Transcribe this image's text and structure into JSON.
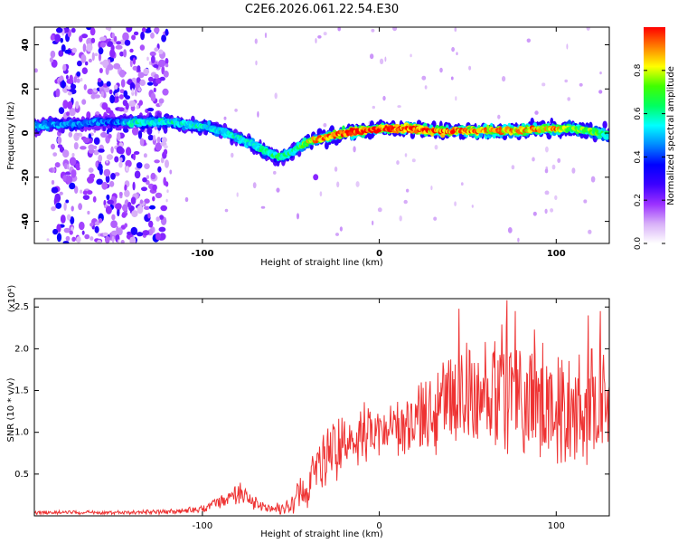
{
  "title": "C2E6.2026.061.22.54.E30",
  "colors": {
    "snr_line": "#ee3333",
    "frame": "#000000",
    "background": "#ffffff"
  },
  "chart_data": [
    {
      "type": "heatmap",
      "name": "spectrogram",
      "xlabel": "Height of straight line (km)",
      "ylabel": "Frequency (Hz)",
      "xlim": [
        -195,
        130
      ],
      "ylim": [
        -50,
        48
      ],
      "xticks": [
        -100,
        0,
        100
      ],
      "xtick_labels": [
        "-100",
        "0",
        "100"
      ],
      "yticks": [
        -40,
        -20,
        0,
        20,
        40
      ],
      "ytick_labels": [
        "-40",
        "-20",
        "0",
        "20",
        "40"
      ],
      "colorbar": {
        "label": "Normalized spectral amplitude",
        "range": [
          0,
          1
        ],
        "ticks": [
          0.0,
          0.2,
          0.4,
          0.6,
          0.8
        ],
        "tick_labels": [
          "0.0",
          "0.2",
          "0.4",
          "0.6",
          "0.8"
        ],
        "colormap": [
          "#ffffff",
          "#d8b0f8",
          "#9b30ff",
          "#3c00ff",
          "#0000ff",
          "#0088ff",
          "#00ffff",
          "#00ff60",
          "#40ff00",
          "#ffff00",
          "#ff8000",
          "#ff0000"
        ]
      },
      "ridge": {
        "height_km": [
          -195,
          -180,
          -170,
          -160,
          -150,
          -140,
          -130,
          -120,
          -110,
          -100,
          -90,
          -80,
          -70,
          -60,
          -55,
          -50,
          -45,
          -40,
          -30,
          -20,
          -10,
          0,
          10,
          20,
          30,
          40,
          50,
          60,
          70,
          80,
          90,
          100,
          110,
          120,
          130
        ],
        "frequency_hz": [
          3,
          4,
          4,
          5,
          5,
          5,
          5,
          5,
          4,
          3,
          1,
          -2,
          -6,
          -10,
          -11,
          -9,
          -6,
          -4,
          -2,
          0,
          1,
          2,
          2,
          2,
          1,
          1,
          1,
          1,
          1,
          1,
          2,
          2,
          2,
          1,
          -1
        ],
        "peak_amplitude": [
          0.5,
          0.45,
          0.45,
          0.45,
          0.4,
          0.55,
          0.55,
          0.55,
          0.55,
          0.55,
          0.55,
          0.55,
          0.55,
          0.6,
          0.6,
          0.6,
          0.65,
          0.8,
          0.9,
          0.95,
          0.95,
          0.95,
          0.95,
          0.95,
          0.9,
          0.9,
          0.9,
          0.85,
          0.85,
          0.85,
          0.85,
          0.85,
          0.7,
          0.7,
          0.6
        ]
      },
      "noise_region_km": [
        -185,
        -120
      ],
      "isolated_points": [
        {
          "height_km": -36,
          "frequency_hz": -20
        }
      ]
    },
    {
      "type": "line",
      "name": "snr",
      "xlabel": "Height of straight line (km)",
      "ylabel": "SNR (10 * v/v)",
      "yscale_label": "(x10⁴)",
      "xlim": [
        -195,
        130
      ],
      "ylim": [
        0,
        2.6
      ],
      "xticks": [
        -100,
        0,
        100
      ],
      "xtick_labels": [
        "-100",
        "0",
        "100"
      ],
      "yticks": [
        0.5,
        1.0,
        1.5,
        2.0,
        2.5
      ],
      "ytick_labels": [
        "0.5",
        "1.0",
        "1.5",
        "2.0",
        "2.5"
      ],
      "envelope": {
        "height_km": [
          -195,
          -150,
          -120,
          -100,
          -90,
          -80,
          -70,
          -60,
          -50,
          -45,
          -40,
          -35,
          -30,
          -20,
          -10,
          0,
          10,
          20,
          30,
          40,
          50,
          60,
          70,
          80,
          90,
          100,
          110,
          120,
          130
        ],
        "mean": [
          0.04,
          0.04,
          0.05,
          0.08,
          0.16,
          0.28,
          0.15,
          0.07,
          0.12,
          0.25,
          0.4,
          0.6,
          0.72,
          0.85,
          0.95,
          1.0,
          1.05,
          1.15,
          1.25,
          1.35,
          1.4,
          1.42,
          1.45,
          1.4,
          1.38,
          1.3,
          1.28,
          1.3,
          1.2
        ],
        "spread": [
          0.02,
          0.02,
          0.03,
          0.04,
          0.08,
          0.12,
          0.08,
          0.04,
          0.1,
          0.2,
          0.25,
          0.3,
          0.3,
          0.3,
          0.3,
          0.25,
          0.3,
          0.3,
          0.4,
          0.55,
          0.6,
          0.6,
          0.7,
          0.65,
          0.65,
          0.6,
          0.6,
          0.6,
          0.6
        ],
        "peaks": [
          {
            "height_km": 45,
            "value": 2.48
          },
          {
            "height_km": 72,
            "value": 2.58
          },
          {
            "height_km": 77,
            "value": 2.45
          },
          {
            "height_km": 118,
            "value": 2.4
          },
          {
            "height_km": 125,
            "value": 2.45
          }
        ]
      }
    }
  ]
}
